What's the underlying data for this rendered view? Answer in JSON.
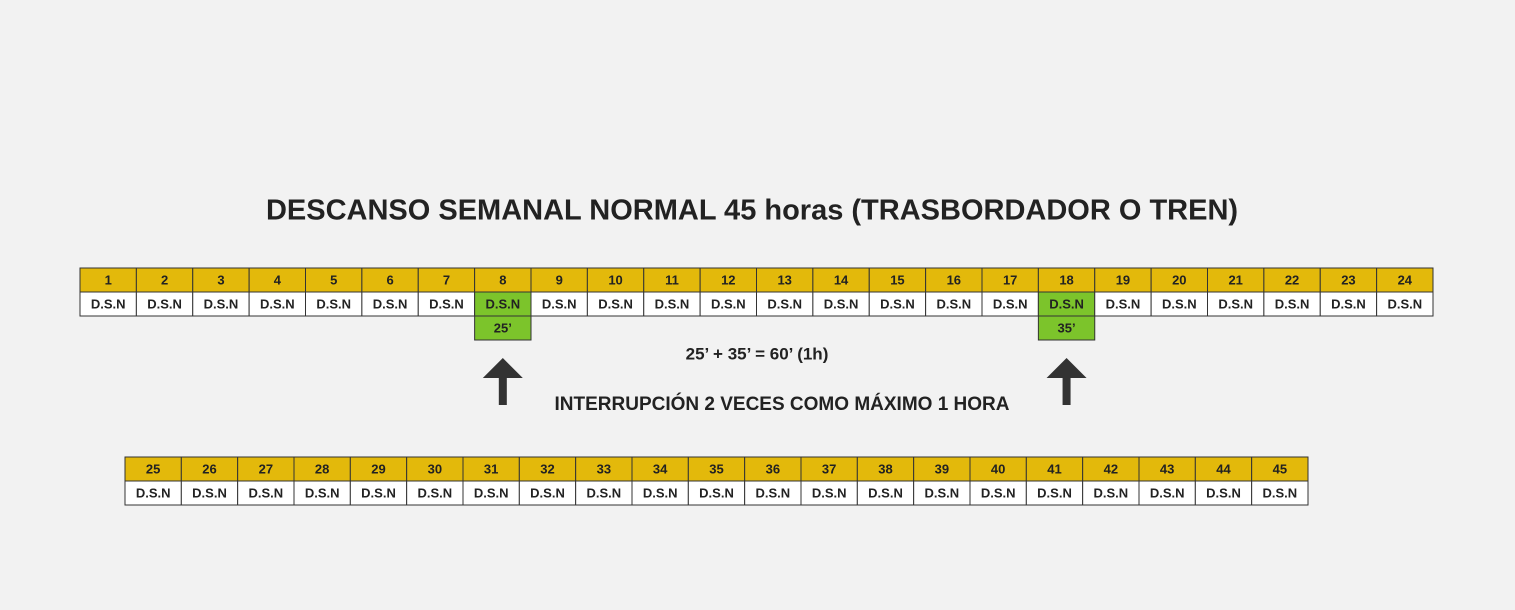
{
  "title": "DESCANSO SEMANAL NORMAL 45 horas (TRASBORDADOR O TREN)",
  "rows": [
    {
      "cells": [
        {
          "hour": "1",
          "label": "D.S.N"
        },
        {
          "hour": "2",
          "label": "D.S.N"
        },
        {
          "hour": "3",
          "label": "D.S.N"
        },
        {
          "hour": "4",
          "label": "D.S.N"
        },
        {
          "hour": "5",
          "label": "D.S.N"
        },
        {
          "hour": "6",
          "label": "D.S.N"
        },
        {
          "hour": "7",
          "label": "D.S.N"
        },
        {
          "hour": "8",
          "label": "D.S.N",
          "interruption": "25’"
        },
        {
          "hour": "9",
          "label": "D.S.N"
        },
        {
          "hour": "10",
          "label": "D.S.N"
        },
        {
          "hour": "11",
          "label": "D.S.N"
        },
        {
          "hour": "12",
          "label": "D.S.N"
        },
        {
          "hour": "13",
          "label": "D.S.N"
        },
        {
          "hour": "14",
          "label": "D.S.N"
        },
        {
          "hour": "15",
          "label": "D.S.N"
        },
        {
          "hour": "16",
          "label": "D.S.N"
        },
        {
          "hour": "17",
          "label": "D.S.N"
        },
        {
          "hour": "18",
          "label": "D.S.N",
          "interruption": "35’"
        },
        {
          "hour": "19",
          "label": "D.S.N"
        },
        {
          "hour": "20",
          "label": "D.S.N"
        },
        {
          "hour": "21",
          "label": "D.S.N"
        },
        {
          "hour": "22",
          "label": "D.S.N"
        },
        {
          "hour": "23",
          "label": "D.S.N"
        },
        {
          "hour": "24",
          "label": "D.S.N"
        }
      ]
    },
    {
      "cells": [
        {
          "hour": "25",
          "label": "D.S.N"
        },
        {
          "hour": "26",
          "label": "D.S.N"
        },
        {
          "hour": "27",
          "label": "D.S.N"
        },
        {
          "hour": "28",
          "label": "D.S.N"
        },
        {
          "hour": "29",
          "label": "D.S.N"
        },
        {
          "hour": "30",
          "label": "D.S.N"
        },
        {
          "hour": "31",
          "label": "D.S.N"
        },
        {
          "hour": "32",
          "label": "D.S.N"
        },
        {
          "hour": "33",
          "label": "D.S.N"
        },
        {
          "hour": "34",
          "label": "D.S.N"
        },
        {
          "hour": "35",
          "label": "D.S.N"
        },
        {
          "hour": "36",
          "label": "D.S.N"
        },
        {
          "hour": "37",
          "label": "D.S.N"
        },
        {
          "hour": "38",
          "label": "D.S.N"
        },
        {
          "hour": "39",
          "label": "D.S.N"
        },
        {
          "hour": "40",
          "label": "D.S.N"
        },
        {
          "hour": "41",
          "label": "D.S.N"
        },
        {
          "hour": "42",
          "label": "D.S.N"
        },
        {
          "hour": "43",
          "label": "D.S.N"
        },
        {
          "hour": "44",
          "label": "D.S.N"
        },
        {
          "hour": "45",
          "label": "D.S.N"
        }
      ]
    }
  ],
  "equation": "25’ + 35’ = 60’ (1h)",
  "caption": "INTERRUPCIÓN 2 VECES COMO MÁXIMO 1 HORA"
}
